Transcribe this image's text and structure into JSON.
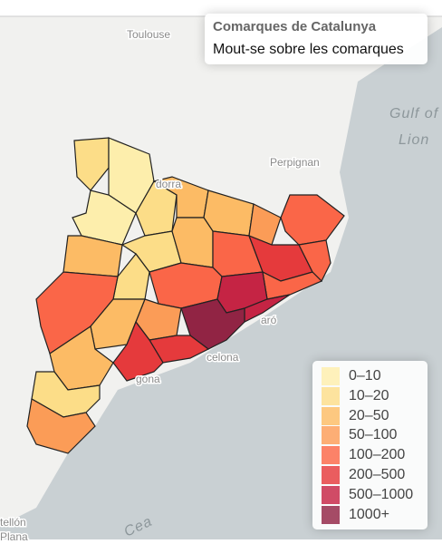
{
  "info": {
    "title": "Comarques de Catalunya",
    "subtitle": "Mout-se sobre les comarques"
  },
  "legend": [
    {
      "label": "0–10",
      "color": "#ffeda0"
    },
    {
      "label": "10–20",
      "color": "#fed976"
    },
    {
      "label": "20–50",
      "color": "#feb24c"
    },
    {
      "label": "50–100",
      "color": "#fd8d3c"
    },
    {
      "label": "100–200",
      "color": "#fc4e2a"
    },
    {
      "label": "200–500",
      "color": "#e31a1c"
    },
    {
      "label": "500–1000",
      "color": "#bd0026"
    },
    {
      "label": "1000+",
      "color": "#800026"
    }
  ],
  "places": [
    "Toulouse",
    "dorra",
    "Perpignan",
    "Gulf of",
    "Lion",
    "celona",
    "aró",
    "gona",
    "tellón",
    "Plana",
    "Cea"
  ]
}
